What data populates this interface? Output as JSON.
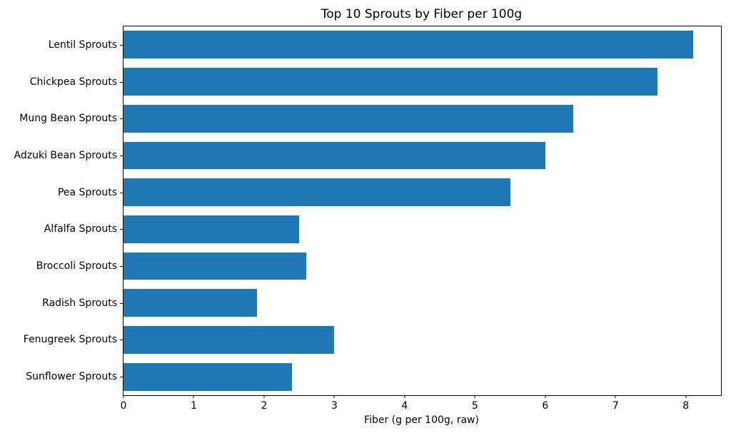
{
  "chart_data": {
    "type": "bar",
    "orientation": "horizontal",
    "title": "Top 10 Sprouts by Fiber per 100g",
    "xlabel": "Fiber (g per 100g, raw)",
    "ylabel": "",
    "categories": [
      "Lentil Sprouts",
      "Chickpea Sprouts",
      "Mung Bean Sprouts",
      "Adzuki Bean Sprouts",
      "Pea Sprouts",
      "Alfalfa Sprouts",
      "Broccoli Sprouts",
      "Radish Sprouts",
      "Fenugreek Sprouts",
      "Sunflower Sprouts"
    ],
    "values": [
      8.1,
      7.6,
      6.4,
      6.0,
      5.5,
      2.5,
      2.6,
      1.9,
      3.0,
      2.4
    ],
    "xlim": [
      0,
      8.5
    ],
    "xticks": [
      "0",
      "1",
      "2",
      "3",
      "4",
      "5",
      "6",
      "7",
      "8"
    ],
    "grid": false,
    "legend": false,
    "bar_color": "#1f77b4"
  },
  "colors": {
    "bar": "#1f77b4",
    "axis": "#000000",
    "background": "#ffffff"
  }
}
